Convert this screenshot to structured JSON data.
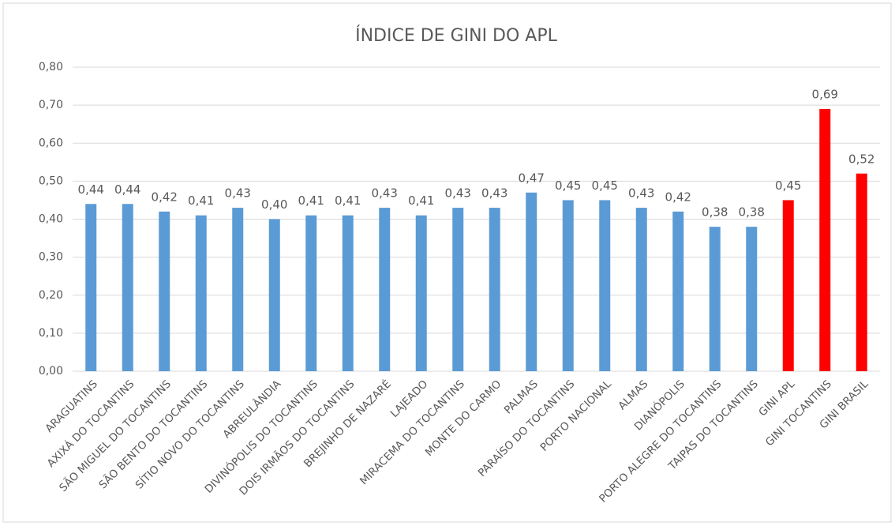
{
  "chart_data": {
    "type": "bar",
    "title": "ÍNDICE DE GINI DO APL",
    "categories": [
      "ARAGUATINS",
      "AXIXÁ DO TOCANTINS",
      "SÃO MIGUEL DO TOCANTINS",
      "SÃO BENTO DO TOCANTINS",
      "SÍTIO NOVO DO TOCANTINS",
      "ABREULÂNDIA",
      "DIVINÓPOLIS DO TOCANTINS",
      "DOIS IRMÃOS DO TOCANTINS",
      "BREJINHO DE NAZARÉ",
      "LAJEADO",
      "MIRACEMA DO TOCANTINS",
      "MONTE DO CARMO",
      "PALMAS",
      "PARAÍSO DO TOCANTINS",
      "PORTO NACIONAL",
      "ALMAS",
      "DIANÓPOLIS",
      "PORTO ALEGRE DO TOCANTINS",
      "TAIPAS DO TOCANTINS",
      "GINI APL",
      "GINI TOCANTINS",
      "GINI BRASIL"
    ],
    "values": [
      0.44,
      0.44,
      0.42,
      0.41,
      0.43,
      0.4,
      0.41,
      0.41,
      0.43,
      0.41,
      0.43,
      0.43,
      0.47,
      0.45,
      0.45,
      0.43,
      0.42,
      0.38,
      0.38,
      0.45,
      0.69,
      0.52
    ],
    "value_labels": [
      "0,44",
      "0,44",
      "0,42",
      "0,41",
      "0,43",
      "0,40",
      "0,41",
      "0,41",
      "0,43",
      "0,41",
      "0,43",
      "0,43",
      "0,47",
      "0,45",
      "0,45",
      "0,43",
      "0,42",
      "0,38",
      "0,38",
      "0,45",
      "0,69",
      "0,52"
    ],
    "colors": [
      "#5b9bd5",
      "#5b9bd5",
      "#5b9bd5",
      "#5b9bd5",
      "#5b9bd5",
      "#5b9bd5",
      "#5b9bd5",
      "#5b9bd5",
      "#5b9bd5",
      "#5b9bd5",
      "#5b9bd5",
      "#5b9bd5",
      "#5b9bd5",
      "#5b9bd5",
      "#5b9bd5",
      "#5b9bd5",
      "#5b9bd5",
      "#5b9bd5",
      "#5b9bd5",
      "#ff0000",
      "#ff0000",
      "#ff0000"
    ],
    "ylim": [
      0,
      0.8
    ],
    "yticks": [
      {
        "value": 0,
        "label": "0,00"
      },
      {
        "value": 0.1,
        "label": "0,10"
      },
      {
        "value": 0.2,
        "label": "0,20"
      },
      {
        "value": 0.3,
        "label": "0,30"
      },
      {
        "value": 0.4,
        "label": "0,40"
      },
      {
        "value": 0.5,
        "label": "0,50"
      },
      {
        "value": 0.6,
        "label": "0,60"
      },
      {
        "value": 0.7,
        "label": "0,70"
      },
      {
        "value": 0.8,
        "label": "0,80"
      }
    ],
    "grid": true
  }
}
